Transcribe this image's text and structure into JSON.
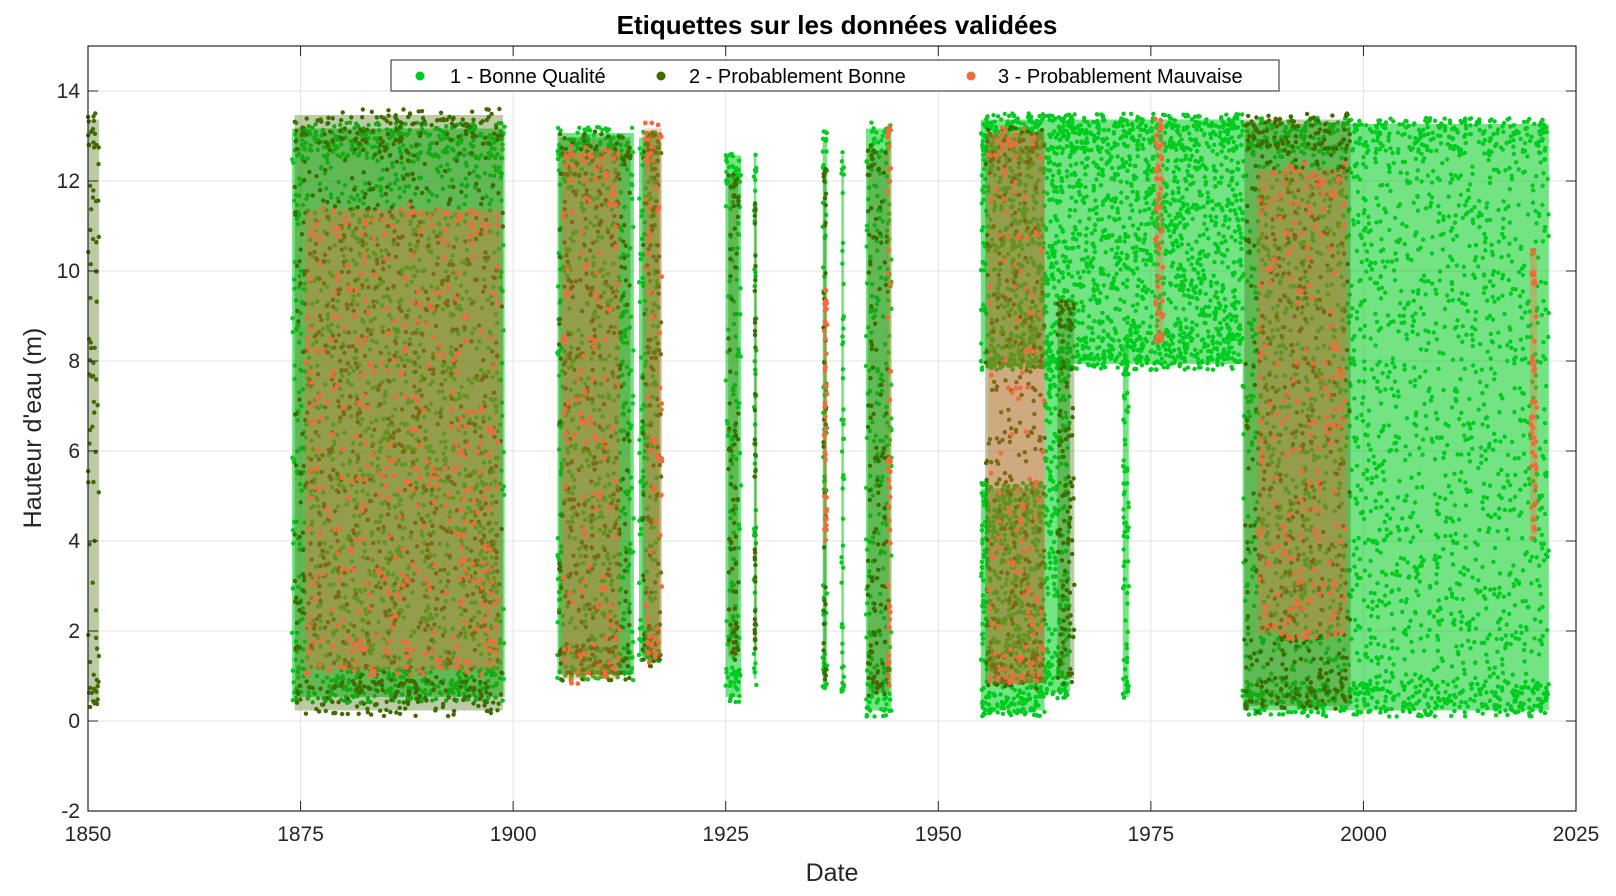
{
  "chart_data": {
    "type": "scatter",
    "title": "Etiquettes sur les données validées",
    "xlabel": "Date",
    "ylabel": "Hauteur d'eau (m)",
    "xlim": [
      1850,
      2025
    ],
    "ylim": [
      -2,
      15
    ],
    "xticks": [
      "1850",
      "1875",
      "1900",
      "1925",
      "1950",
      "1975",
      "2000",
      "2025"
    ],
    "yticks": [
      "-2",
      "0",
      "2",
      "4",
      "6",
      "8",
      "10",
      "12",
      "14"
    ],
    "grid": true,
    "legend_position": "top",
    "series": [
      {
        "name": "1 - Bonne Qualité",
        "color": "#00cc1f",
        "ranges": [
          {
            "x": [
              1874.0,
              1899.0
            ],
            "y": [
              0.4,
              13.3
            ]
          },
          {
            "x": [
              1905.2,
              1914.2
            ],
            "y": [
              0.9,
              13.2
            ]
          },
          {
            "x": [
              1914.8,
              1917.2
            ],
            "y": [
              1.3,
              13.1
            ]
          },
          {
            "x": [
              1925.0,
              1926.8
            ],
            "y": [
              0.4,
              12.7
            ]
          },
          {
            "x": [
              1928.3,
              1928.6
            ],
            "y": [
              0.8,
              12.7
            ]
          },
          {
            "x": [
              1936.4,
              1936.9
            ],
            "y": [
              0.7,
              13.1
            ]
          },
          {
            "x": [
              1938.6,
              1938.9
            ],
            "y": [
              0.6,
              12.7
            ]
          },
          {
            "x": [
              1941.5,
              1944.5
            ],
            "y": [
              0.1,
              13.3
            ]
          },
          {
            "x": [
              1955.0,
              1962.5
            ],
            "y": [
              0.1,
              5.3
            ]
          },
          {
            "x": [
              1955.0,
              1985.8
            ],
            "y": [
              7.8,
              13.5
            ]
          },
          {
            "x": [
              1962.5,
              1965.5
            ],
            "y": [
              0.5,
              8.2
            ]
          },
          {
            "x": [
              1971.7,
              1972.4
            ],
            "y": [
              0.4,
              8.5
            ]
          },
          {
            "x": [
              1985.8,
              2021.8
            ],
            "y": [
              0.1,
              13.4
            ]
          }
        ]
      },
      {
        "name": "2 - Probablement Bonne",
        "color": "#3f6b00",
        "ranges": [
          {
            "x": [
              1850.0,
              1851.3
            ],
            "y": [
              0.3,
              13.5
            ]
          },
          {
            "x": [
              1874.3,
              1898.8
            ],
            "y": [
              0.1,
              13.6
            ]
          },
          {
            "x": [
              1905.4,
              1913.8
            ],
            "y": [
              0.9,
              13.1
            ]
          },
          {
            "x": [
              1915.2,
              1917.4
            ],
            "y": [
              1.2,
              13.2
            ]
          },
          {
            "x": [
              1925.3,
              1926.5
            ],
            "y": [
              1.3,
              12.2
            ]
          },
          {
            "x": [
              1928.4,
              1928.5
            ],
            "y": [
              1.5,
              11.6
            ]
          },
          {
            "x": [
              1936.5,
              1936.8
            ],
            "y": [
              0.8,
              12.4
            ]
          },
          {
            "x": [
              1941.7,
              1944.2
            ],
            "y": [
              0.5,
              12.8
            ]
          },
          {
            "x": [
              1955.5,
              1962.5
            ],
            "y": [
              0.7,
              13.2
            ]
          },
          {
            "x": [
              1964.0,
              1966.0
            ],
            "y": [
              0.8,
              9.5
            ]
          },
          {
            "x": [
              1986.0,
              1998.5
            ],
            "y": [
              0.2,
              13.5
            ]
          }
        ]
      },
      {
        "name": "3 - Probablement Mauvaise",
        "color": "#f46a3a",
        "ranges": [
          {
            "x": [
              1875.5,
              1898.5
            ],
            "y": [
              1.0,
              11.5
            ]
          },
          {
            "x": [
              1905.8,
              1912.5
            ],
            "y": [
              0.8,
              12.8
            ]
          },
          {
            "x": [
              1915.5,
              1917.5
            ],
            "y": [
              1.3,
              13.3
            ]
          },
          {
            "x": [
              1936.6,
              1936.9
            ],
            "y": [
              4.0,
              9.6
            ]
          },
          {
            "x": [
              1944.0,
              1944.4
            ],
            "y": [
              0.7,
              13.4
            ]
          },
          {
            "x": [
              1955.8,
              1962.5
            ],
            "y": [
              0.7,
              13.2
            ]
          },
          {
            "x": [
              1975.5,
              1976.5
            ],
            "y": [
              8.4,
              13.4
            ]
          },
          {
            "x": [
              1987.5,
              1998.0
            ],
            "y": [
              1.8,
              12.4
            ]
          },
          {
            "x": [
              2019.6,
              2020.4
            ],
            "y": [
              4.0,
              10.5
            ]
          }
        ]
      }
    ]
  }
}
